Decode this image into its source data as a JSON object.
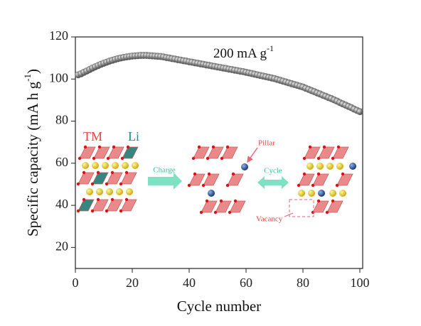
{
  "chart_data": {
    "type": "scatter",
    "annotation": {
      "text": "200 mA g",
      "sup": "-1"
    },
    "x_label": "Cycle number",
    "y_label": {
      "text": "Specific capacity (mA h g",
      "sup": "-1",
      "end": ")"
    },
    "x": [
      1,
      2,
      3,
      4,
      5,
      6,
      7,
      8,
      9,
      10,
      11,
      12,
      13,
      14,
      15,
      16,
      17,
      18,
      19,
      20,
      21,
      22,
      23,
      24,
      25,
      26,
      27,
      28,
      29,
      30,
      31,
      32,
      33,
      34,
      35,
      36,
      37,
      38,
      39,
      40,
      41,
      42,
      43,
      44,
      45,
      46,
      47,
      48,
      49,
      50,
      51,
      52,
      53,
      54,
      55,
      56,
      57,
      58,
      59,
      60,
      61,
      62,
      63,
      64,
      65,
      66,
      67,
      68,
      69,
      70,
      71,
      72,
      73,
      74,
      75,
      76,
      77,
      78,
      79,
      80,
      81,
      82,
      83,
      84,
      85,
      86,
      87,
      88,
      89,
      90,
      91,
      92,
      93,
      94,
      95,
      96,
      97,
      98,
      99,
      100
    ],
    "values": [
      102.0,
      102.5,
      103.2,
      103.8,
      104.5,
      105.2,
      105.8,
      106.4,
      107.0,
      107.5,
      108.0,
      108.5,
      108.9,
      109.3,
      109.7,
      110.0,
      110.3,
      110.5,
      110.7,
      110.9,
      111.0,
      111.1,
      111.2,
      111.2,
      111.2,
      111.1,
      111.0,
      110.9,
      110.8,
      110.7,
      110.5,
      110.2,
      110.0,
      109.7,
      109.5,
      109.2,
      109.0,
      108.7,
      108.5,
      108.2,
      108.0,
      107.7,
      107.5,
      107.2,
      107.0,
      106.7,
      106.5,
      106.2,
      106.0,
      105.7,
      105.5,
      105.2,
      105.0,
      104.7,
      104.5,
      104.2,
      104.0,
      103.7,
      103.5,
      103.2,
      102.9,
      102.6,
      102.3,
      102.0,
      101.7,
      101.4,
      101.1,
      100.8,
      100.5,
      100.2,
      99.8,
      99.4,
      99.0,
      98.6,
      98.2,
      97.8,
      97.4,
      97.0,
      96.6,
      96.2,
      95.6,
      95.1,
      94.5,
      94.0,
      93.4,
      92.9,
      92.3,
      91.8,
      91.2,
      90.7,
      90.1,
      89.5,
      88.8,
      88.2,
      87.6,
      87.0,
      86.4,
      85.7,
      85.1,
      84.5
    ],
    "color": "#6e6e6e",
    "xlim": [
      0,
      101
    ],
    "ylim": [
      10,
      120
    ],
    "xticks": [
      0,
      20,
      40,
      60,
      80,
      100
    ],
    "yticks": [
      20,
      40,
      60,
      80,
      100,
      120
    ],
    "inset": {
      "tm": "TM",
      "li": "Li",
      "charge": "Charge",
      "cycle": "Cycle",
      "pillar": "Pillar",
      "vacancy": "Vacancy"
    }
  }
}
